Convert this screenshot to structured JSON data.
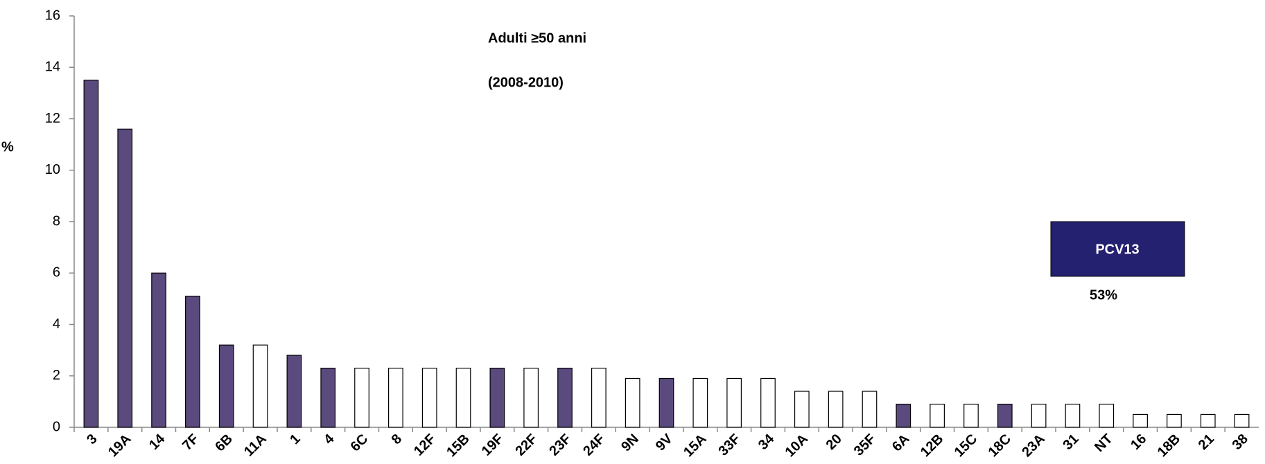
{
  "chart_data": {
    "type": "bar",
    "title": "Adulti ≥50 anni",
    "subtitle": "(2008-2010)",
    "y_label": "%",
    "categories": [
      "3",
      "19A",
      "14",
      "7F",
      "6B",
      "11A",
      "1",
      "4",
      "6C",
      "8",
      "12F",
      "15B",
      "19F",
      "22F",
      "23F",
      "24F",
      "9N",
      "9V",
      "15A",
      "33F",
      "34",
      "10A",
      "20",
      "35F",
      "6A",
      "12B",
      "15C",
      "18C",
      "23A",
      "31",
      "NT",
      "16",
      "18B",
      "21",
      "38"
    ],
    "values": [
      13.5,
      11.6,
      6.0,
      5.1,
      3.2,
      3.2,
      2.8,
      2.3,
      2.3,
      2.3,
      2.3,
      2.3,
      2.3,
      2.3,
      2.3,
      2.3,
      1.9,
      1.9,
      1.9,
      1.9,
      1.9,
      1.4,
      1.4,
      1.4,
      0.9,
      0.9,
      0.9,
      0.9,
      0.9,
      0.9,
      0.9,
      0.5,
      0.5,
      0.5,
      0.5
    ],
    "colors": [
      "#5b4a7e",
      "#5b4a7e",
      "#5b4a7e",
      "#5b4a7e",
      "#5b4a7e",
      "#ffffff",
      "#5b4a7e",
      "#5b4a7e",
      "#ffffff",
      "#ffffff",
      "#ffffff",
      "#ffffff",
      "#5b4a7e",
      "#ffffff",
      "#5b4a7e",
      "#ffffff",
      "#ffffff",
      "#5b4a7e",
      "#ffffff",
      "#ffffff",
      "#ffffff",
      "#ffffff",
      "#ffffff",
      "#ffffff",
      "#5b4a7e",
      "#ffffff",
      "#ffffff",
      "#5b4a7e",
      "#ffffff",
      "#ffffff",
      "#ffffff",
      "#ffffff",
      "#ffffff",
      "#ffffff",
      "#ffffff"
    ],
    "ylim": [
      0,
      16
    ],
    "yticks": [
      0,
      2,
      4,
      6,
      8,
      10,
      12,
      14,
      16
    ],
    "annotations": {
      "box": "PCV13",
      "box_value": "53%"
    }
  }
}
